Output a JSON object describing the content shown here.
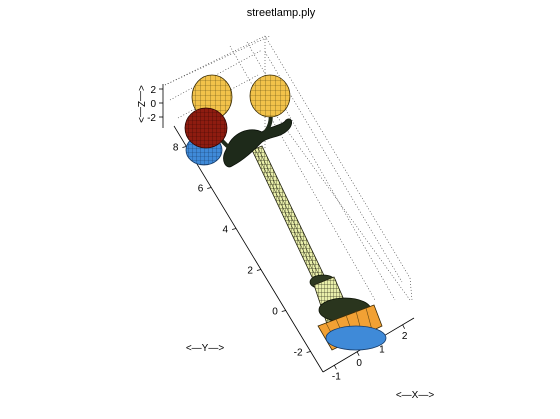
{
  "chart_data": {
    "type": "surface3d",
    "title": "streetlamp.ply",
    "xlabel": "<—X—>",
    "ylabel": "<—Y—>",
    "zlabel": "<—Z—>",
    "x_ticks": [
      "-1",
      "0",
      "1",
      "2"
    ],
    "y_ticks": [
      "-2",
      "0",
      "2",
      "4",
      "6",
      "8"
    ],
    "z_ticks": [
      "2",
      "0",
      "-2"
    ],
    "xlim": [
      -1.5,
      2.5
    ],
    "ylim": [
      -3,
      9
    ],
    "zlim": [
      -3,
      3
    ],
    "grid": true,
    "colors": {
      "pole": "#e8eeaa",
      "pole_mesh": "#3a3a22",
      "globe_yellow": "#f2c24a",
      "globe_red": "#8e1c10",
      "globe_blue": "#3f8ad8",
      "base_orange": "#f2a134",
      "base_blue": "#3f8ad8",
      "ornament": "#1e2a1a"
    }
  }
}
